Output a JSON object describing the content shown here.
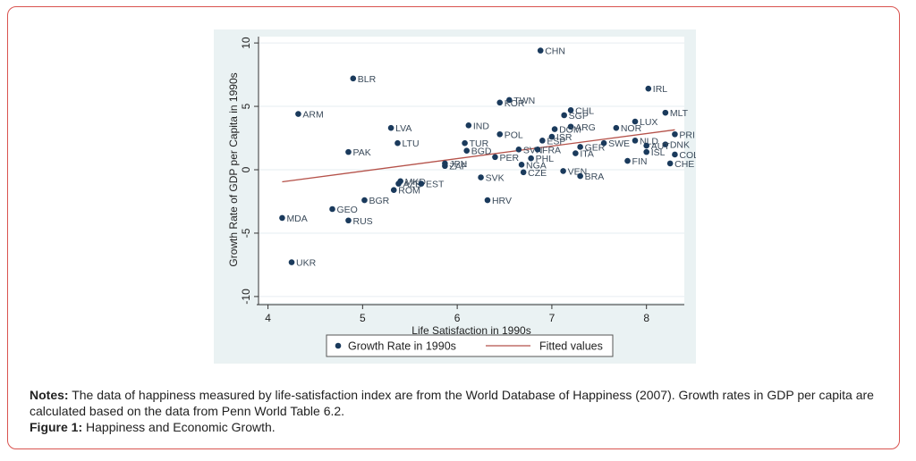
{
  "chart_data": {
    "type": "scatter",
    "xlabel": "Life Satisfaction in 1990s",
    "ylabel": "Growth Rate of GDP per Capita in 1990s",
    "xlim": [
      3.9,
      8.4
    ],
    "ylim": [
      -10.5,
      10.5
    ],
    "xticks": [
      "4",
      "5",
      "6",
      "7",
      "8"
    ],
    "yticks": [
      "-10",
      "-5",
      "0",
      "5",
      "10"
    ],
    "grid": "horizontal",
    "legend_position": "bottom",
    "series": [
      {
        "name": "Growth Rate in 1990s",
        "marker": "circle",
        "color": "#1a3a5c",
        "points": [
          {
            "label": "CHN",
            "x": 6.88,
            "y": 9.4
          },
          {
            "label": "IRL",
            "x": 8.02,
            "y": 6.4
          },
          {
            "label": "BLR",
            "x": 4.9,
            "y": 7.2
          },
          {
            "label": "TWN",
            "x": 6.55,
            "y": 5.5
          },
          {
            "label": "KOR",
            "x": 6.45,
            "y": 5.3
          },
          {
            "label": "MLT",
            "x": 8.2,
            "y": 4.5
          },
          {
            "label": "ARM",
            "x": 4.32,
            "y": 4.4
          },
          {
            "label": "CHL",
            "x": 7.2,
            "y": 4.7
          },
          {
            "label": "SGP",
            "x": 7.13,
            "y": 4.3
          },
          {
            "label": "LUX",
            "x": 7.88,
            "y": 3.8
          },
          {
            "label": "ARG",
            "x": 7.2,
            "y": 3.4
          },
          {
            "label": "IND",
            "x": 6.12,
            "y": 3.5
          },
          {
            "label": "NOR",
            "x": 7.68,
            "y": 3.3
          },
          {
            "label": "LVA",
            "x": 5.3,
            "y": 3.3
          },
          {
            "label": "DOM",
            "x": 7.03,
            "y": 3.2
          },
          {
            "label": "POL",
            "x": 6.45,
            "y": 2.8
          },
          {
            "label": "PRI",
            "x": 8.3,
            "y": 2.8
          },
          {
            "label": "ISR",
            "x": 7.0,
            "y": 2.6
          },
          {
            "label": "LTU",
            "x": 5.37,
            "y": 2.1
          },
          {
            "label": "TUR",
            "x": 6.08,
            "y": 2.1
          },
          {
            "label": "DNK",
            "x": 8.2,
            "y": 2.0
          },
          {
            "label": "GER",
            "x": 7.3,
            "y": 1.8
          },
          {
            "label": "SWE",
            "x": 7.55,
            "y": 2.1
          },
          {
            "label": "ESP",
            "x": 6.9,
            "y": 2.3
          },
          {
            "label": "NLD",
            "x": 7.88,
            "y": 2.3
          },
          {
            "label": "AUT",
            "x": 8.0,
            "y": 1.9
          },
          {
            "label": "BGD",
            "x": 6.1,
            "y": 1.5
          },
          {
            "label": "SVN",
            "x": 6.65,
            "y": 1.6
          },
          {
            "label": "FRA",
            "x": 6.85,
            "y": 1.6
          },
          {
            "label": "ITA",
            "x": 7.25,
            "y": 1.3
          },
          {
            "label": "ISL",
            "x": 8.0,
            "y": 1.4
          },
          {
            "label": "COL",
            "x": 8.3,
            "y": 1.2
          },
          {
            "label": "PAK",
            "x": 4.85,
            "y": 1.4
          },
          {
            "label": "PER",
            "x": 6.4,
            "y": 1.0
          },
          {
            "label": "PHL",
            "x": 6.78,
            "y": 0.9
          },
          {
            "label": "NGA",
            "x": 6.68,
            "y": 0.4
          },
          {
            "label": "FIN",
            "x": 7.8,
            "y": 0.7
          },
          {
            "label": "CHE",
            "x": 8.25,
            "y": 0.5
          },
          {
            "label": "JPN",
            "x": 5.87,
            "y": 0.5
          },
          {
            "label": "ZAF",
            "x": 5.87,
            "y": 0.3
          },
          {
            "label": "CZE",
            "x": 6.7,
            "y": -0.2
          },
          {
            "label": "VEN",
            "x": 7.12,
            "y": -0.1
          },
          {
            "label": "BRA",
            "x": 7.3,
            "y": -0.5
          },
          {
            "label": "SVK",
            "x": 6.25,
            "y": -0.6
          },
          {
            "label": "MKD",
            "x": 5.4,
            "y": -0.9
          },
          {
            "label": "AZE",
            "x": 5.38,
            "y": -1.1
          },
          {
            "label": "EST",
            "x": 5.62,
            "y": -1.1
          },
          {
            "label": "ROM",
            "x": 5.33,
            "y": -1.6
          },
          {
            "label": "BGR",
            "x": 5.02,
            "y": -2.4
          },
          {
            "label": "HRV",
            "x": 6.32,
            "y": -2.4
          },
          {
            "label": "GEO",
            "x": 4.68,
            "y": -3.1
          },
          {
            "label": "MDA",
            "x": 4.15,
            "y": -3.8
          },
          {
            "label": "RUS",
            "x": 4.85,
            "y": -4.0
          },
          {
            "label": "UKR",
            "x": 4.25,
            "y": -7.3
          }
        ]
      },
      {
        "name": "Fitted values",
        "marker": "line",
        "color": "#b5524a",
        "line": [
          [
            4.15,
            -0.95
          ],
          [
            8.3,
            3.15
          ]
        ]
      }
    ]
  },
  "notes": {
    "notes_label": "Notes:",
    "notes_text": " The data of happiness measured by life-satisfaction index are from the World Database of Happiness (2007). Growth rates in GDP per capita are calculated based on the data from Penn World Table 6.2.",
    "figure_label": "Figure 1:",
    "figure_text": " Happiness and Economic Growth."
  }
}
